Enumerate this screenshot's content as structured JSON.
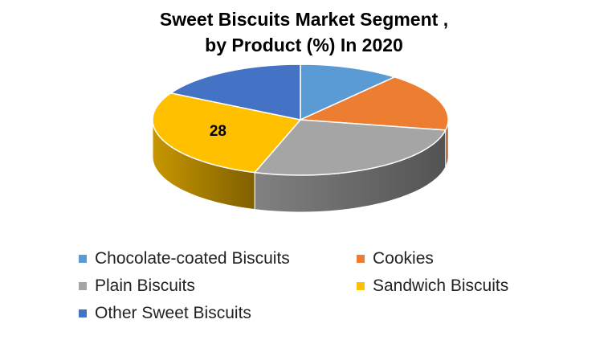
{
  "chart_data": {
    "type": "pie",
    "title_line1": "Sweet Biscuits Market Segment ,",
    "title_line2": "by Product (%) In 2020",
    "legend_position": "bottom",
    "slices": [
      {
        "label": "Chocolate-coated Biscuits",
        "value": 11,
        "color": "#5B9BD5",
        "shown_label": ""
      },
      {
        "label": "Cookies",
        "value": 17,
        "color": "#ED7D31",
        "shown_label": ""
      },
      {
        "label": "Plain Biscuits",
        "value": 27,
        "color": "#A5A5A5",
        "shown_label": ""
      },
      {
        "label": "Sandwich Biscuits",
        "value": 28,
        "color": "#FFC000",
        "shown_label": "28"
      },
      {
        "label": "Other Sweet Biscuits",
        "value": 17,
        "color": "#4472C4",
        "shown_label": ""
      }
    ]
  }
}
